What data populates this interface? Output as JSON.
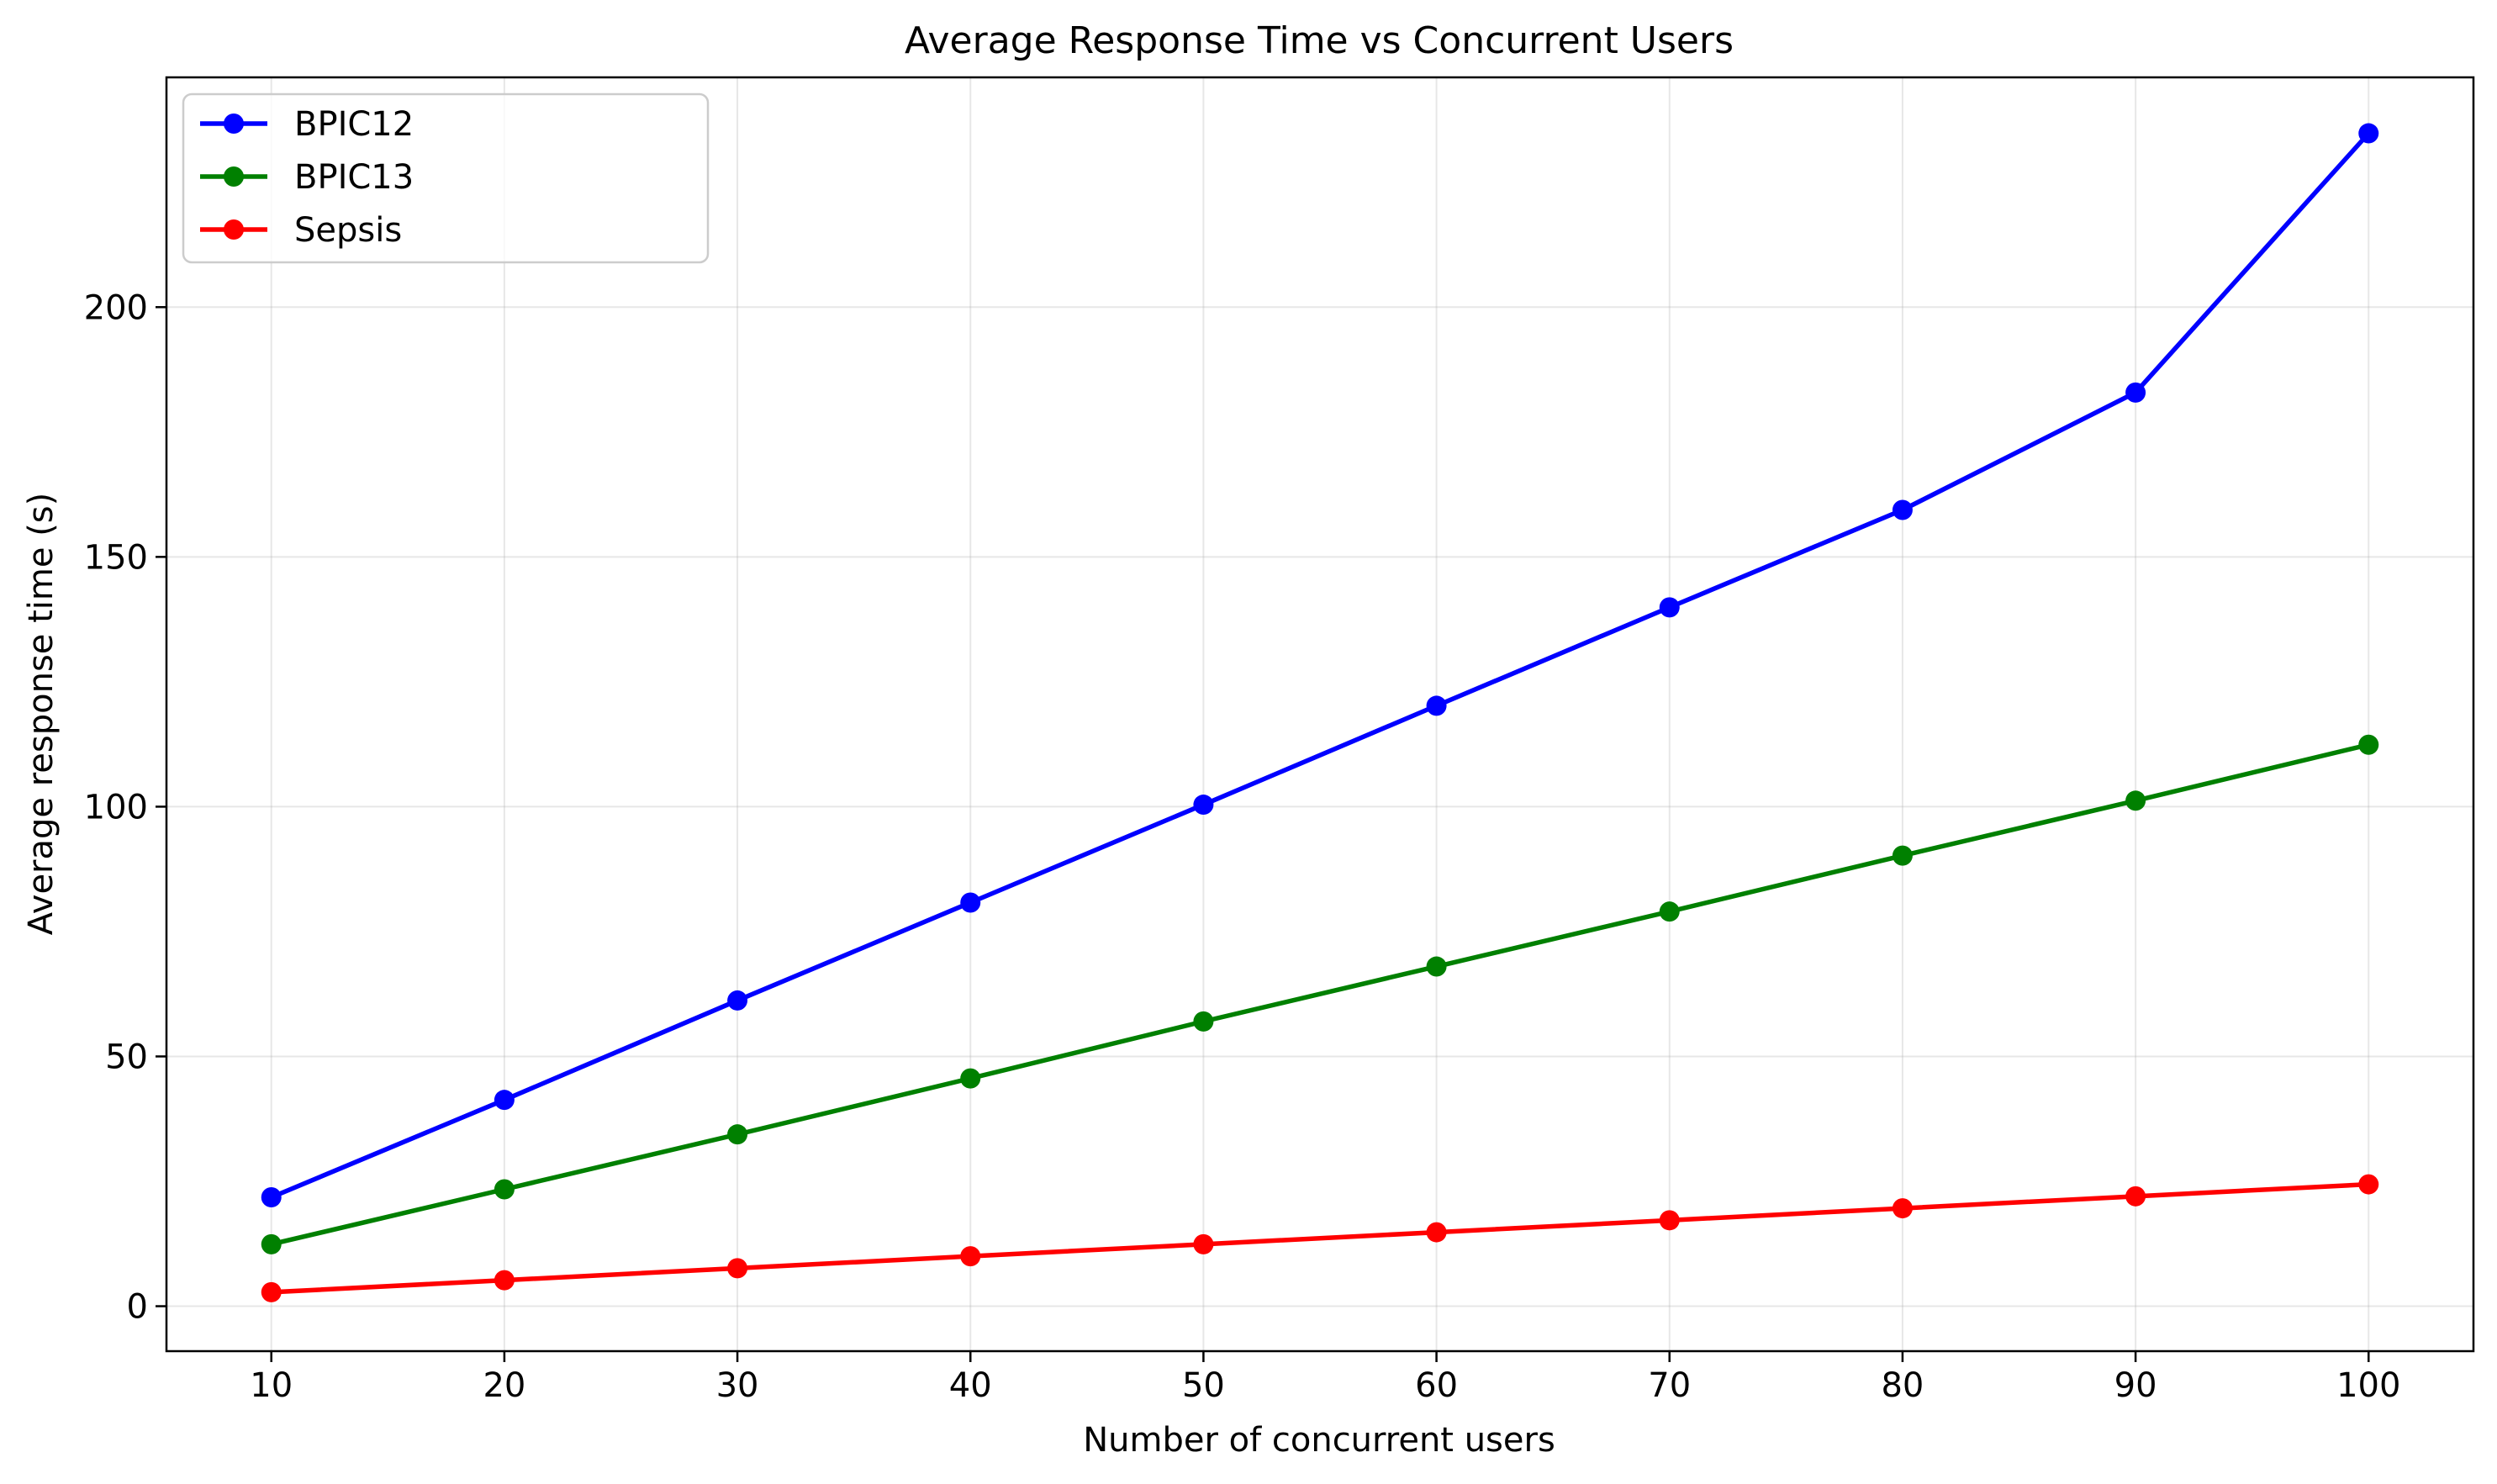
{
  "chart_data": {
    "type": "line",
    "title": "Average Response Time vs Concurrent Users",
    "xlabel": "Number of concurrent users",
    "ylabel": "Average response time (s)",
    "x": [
      10,
      20,
      30,
      40,
      50,
      60,
      70,
      80,
      90,
      100
    ],
    "xlim": [
      5.5,
      104.5
    ],
    "ylim": [
      -9,
      246
    ],
    "xticks": [
      10,
      20,
      30,
      40,
      50,
      60,
      70,
      80,
      90,
      100
    ],
    "yticks": [
      0,
      50,
      100,
      150,
      200
    ],
    "grid": true,
    "legend_position": "upper-left",
    "series": [
      {
        "name": "BPIC12",
        "color": "#0000ff",
        "marker": "circle",
        "values": [
          21.8,
          41.3,
          61.2,
          80.8,
          100.4,
          120.2,
          139.9,
          159.4,
          182.9,
          234.8
        ]
      },
      {
        "name": "BPIC13",
        "color": "#008000",
        "marker": "circle",
        "values": [
          12.4,
          23.4,
          34.4,
          45.6,
          57.0,
          68.0,
          79.0,
          90.2,
          101.2,
          112.4
        ]
      },
      {
        "name": "Sepsis",
        "color": "#ff0000",
        "marker": "circle",
        "values": [
          2.8,
          5.2,
          7.6,
          10.0,
          12.4,
          14.8,
          17.2,
          19.6,
          22.0,
          24.4
        ]
      }
    ]
  }
}
